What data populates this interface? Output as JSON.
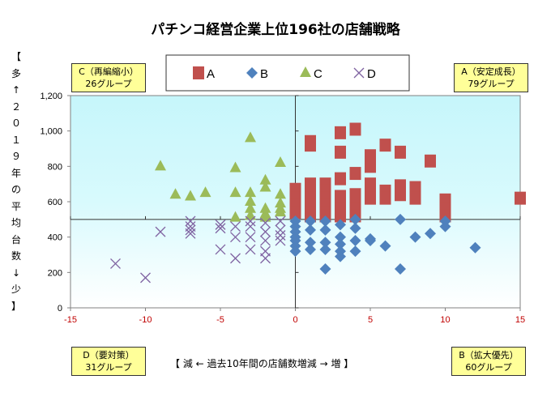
{
  "chart_data": {
    "type": "scatter",
    "title": "パチンコ経営企業上位196社の店舗戦略",
    "xlabel": "【 減 ← 過去10年間の店舗数増減 → 増 】",
    "ylabel_chars": [
      "【",
      "多",
      "↑",
      "２",
      "０",
      "１",
      "９",
      "年",
      "の",
      "平",
      "均",
      "台",
      "数",
      "↓",
      "少",
      "】"
    ],
    "xlim": [
      -15,
      15
    ],
    "ylim": [
      0,
      1200
    ],
    "xticks": [
      -15,
      -10,
      -5,
      0,
      5,
      10,
      15
    ],
    "yticks": [
      0,
      200,
      400,
      600,
      800,
      1000,
      1200
    ],
    "ytick_labels": [
      "0",
      "200",
      "400",
      "600",
      "800",
      "1,000",
      "1,200"
    ],
    "xtick_color": "#c00000",
    "reference_lines": {
      "x": 0,
      "y": 500
    },
    "background_top": "#c6f6fb",
    "legend_position": "top-center",
    "series": [
      {
        "name": "A",
        "marker": "square",
        "color": "#c0504d",
        "points": [
          [
            0,
            670
          ],
          [
            0,
            620
          ],
          [
            0,
            580
          ],
          [
            0,
            540
          ],
          [
            1,
            940
          ],
          [
            1,
            920
          ],
          [
            1,
            700
          ],
          [
            1,
            660
          ],
          [
            1,
            620
          ],
          [
            1,
            580
          ],
          [
            1,
            540
          ],
          [
            1,
            520
          ],
          [
            2,
            700
          ],
          [
            2,
            660
          ],
          [
            2,
            620
          ],
          [
            2,
            580
          ],
          [
            2,
            540
          ],
          [
            2,
            520
          ],
          [
            3,
            990
          ],
          [
            3,
            880
          ],
          [
            3,
            730
          ],
          [
            3,
            630
          ],
          [
            3,
            560
          ],
          [
            3,
            520
          ],
          [
            4,
            1010
          ],
          [
            4,
            760
          ],
          [
            4,
            640
          ],
          [
            4,
            600
          ],
          [
            4,
            560
          ],
          [
            4,
            520
          ],
          [
            5,
            860
          ],
          [
            5,
            800
          ],
          [
            5,
            700
          ],
          [
            5,
            660
          ],
          [
            5,
            620
          ],
          [
            6,
            920
          ],
          [
            6,
            660
          ],
          [
            6,
            620
          ],
          [
            7,
            880
          ],
          [
            7,
            690
          ],
          [
            7,
            640
          ],
          [
            8,
            680
          ],
          [
            8,
            620
          ],
          [
            9,
            830
          ],
          [
            10,
            610
          ],
          [
            10,
            560
          ],
          [
            10,
            520
          ],
          [
            15,
            620
          ]
        ]
      },
      {
        "name": "B",
        "marker": "diamond",
        "color": "#4f81bd",
        "points": [
          [
            0,
            490
          ],
          [
            0,
            460
          ],
          [
            0,
            430
          ],
          [
            0,
            400
          ],
          [
            0,
            380
          ],
          [
            0,
            350
          ],
          [
            0,
            320
          ],
          [
            1,
            490
          ],
          [
            1,
            440
          ],
          [
            1,
            370
          ],
          [
            1,
            330
          ],
          [
            2,
            490
          ],
          [
            2,
            440
          ],
          [
            2,
            370
          ],
          [
            2,
            330
          ],
          [
            2,
            220
          ],
          [
            3,
            470
          ],
          [
            3,
            400
          ],
          [
            3,
            360
          ],
          [
            3,
            320
          ],
          [
            3,
            290
          ],
          [
            4,
            500
          ],
          [
            4,
            450
          ],
          [
            4,
            380
          ],
          [
            4,
            320
          ],
          [
            5,
            390
          ],
          [
            5,
            380
          ],
          [
            6,
            350
          ],
          [
            7,
            500
          ],
          [
            7,
            220
          ],
          [
            8,
            400
          ],
          [
            9,
            420
          ],
          [
            10,
            490
          ],
          [
            10,
            460
          ],
          [
            12,
            340
          ]
        ]
      },
      {
        "name": "C",
        "marker": "triangle",
        "color": "#9bbb59",
        "points": [
          [
            -9,
            800
          ],
          [
            -8,
            640
          ],
          [
            -7,
            630
          ],
          [
            -6,
            650
          ],
          [
            -4,
            790
          ],
          [
            -4,
            650
          ],
          [
            -4,
            510
          ],
          [
            -3,
            960
          ],
          [
            -3,
            650
          ],
          [
            -3,
            600
          ],
          [
            -3,
            560
          ],
          [
            -3,
            520
          ],
          [
            -2,
            720
          ],
          [
            -2,
            680
          ],
          [
            -2,
            560
          ],
          [
            -2,
            530
          ],
          [
            -2,
            510
          ],
          [
            -1,
            820
          ],
          [
            -1,
            640
          ],
          [
            -1,
            590
          ],
          [
            -1,
            560
          ],
          [
            -1,
            540
          ]
        ]
      },
      {
        "name": "D",
        "marker": "cross",
        "color": "#8064a2",
        "points": [
          [
            -12,
            250
          ],
          [
            -10,
            170
          ],
          [
            -9,
            430
          ],
          [
            -7,
            490
          ],
          [
            -7,
            460
          ],
          [
            -7,
            440
          ],
          [
            -7,
            420
          ],
          [
            -5,
            470
          ],
          [
            -5,
            450
          ],
          [
            -5,
            330
          ],
          [
            -4,
            460
          ],
          [
            -4,
            400
          ],
          [
            -4,
            280
          ],
          [
            -3,
            490
          ],
          [
            -3,
            460
          ],
          [
            -3,
            400
          ],
          [
            -3,
            330
          ],
          [
            -2,
            480
          ],
          [
            -2,
            430
          ],
          [
            -2,
            380
          ],
          [
            -2,
            320
          ],
          [
            -2,
            280
          ],
          [
            -1,
            490
          ],
          [
            -1,
            440
          ],
          [
            -1,
            410
          ],
          [
            -1,
            380
          ]
        ]
      }
    ]
  },
  "quadrants": {
    "A": {
      "line1": "A（安定成長）",
      "line2": "79グループ"
    },
    "B": {
      "line1": "B（拡大優先）",
      "line2": "60グループ"
    },
    "C": {
      "line1": "C（再編縮小）",
      "line2": "26グループ"
    },
    "D": {
      "line1": "D（要対策）",
      "line2": "31グループ"
    }
  }
}
